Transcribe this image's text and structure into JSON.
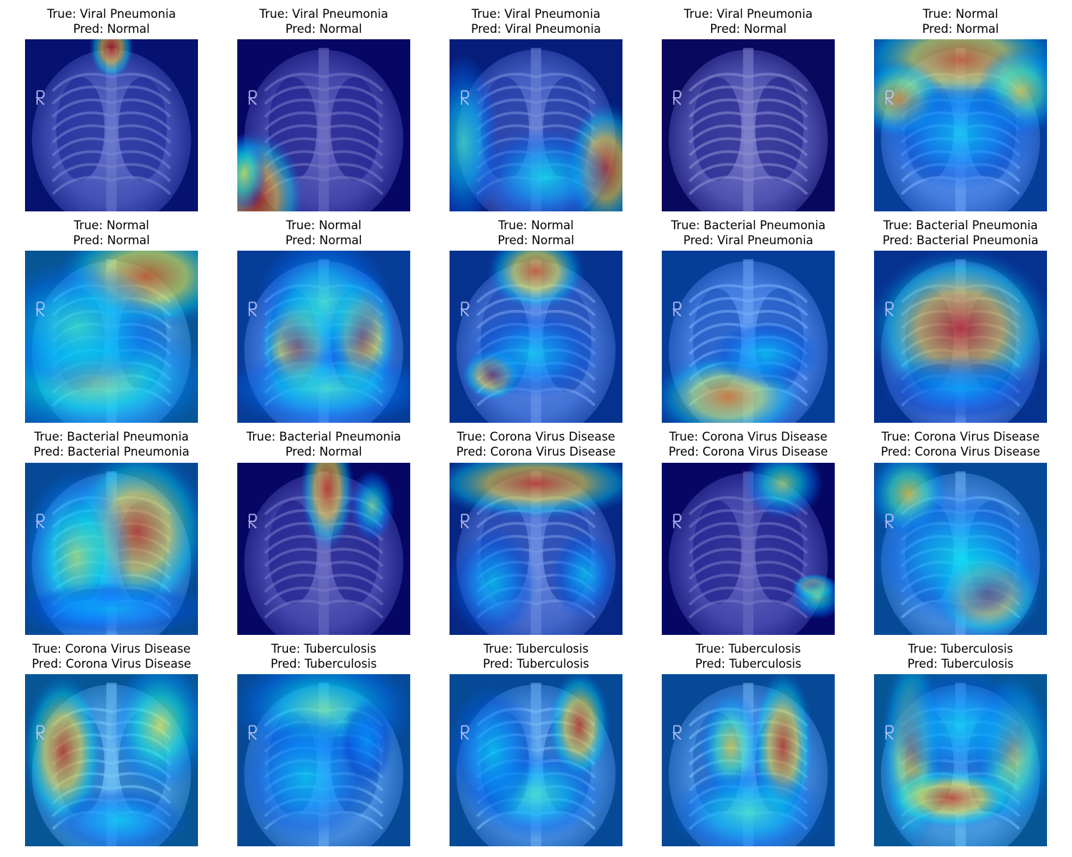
{
  "figure": {
    "panels": [
      {
        "true_label": "True: Viral Pneumonia",
        "pred_label": "Pred: Normal"
      },
      {
        "true_label": "True: Viral Pneumonia",
        "pred_label": "Pred: Normal"
      },
      {
        "true_label": "True: Viral Pneumonia",
        "pred_label": "Pred: Viral Pneumonia"
      },
      {
        "true_label": "True: Viral Pneumonia",
        "pred_label": "Pred: Normal"
      },
      {
        "true_label": "True: Normal",
        "pred_label": "Pred: Normal"
      },
      {
        "true_label": "True: Normal",
        "pred_label": "Pred: Normal"
      },
      {
        "true_label": "True: Normal",
        "pred_label": "Pred: Normal"
      },
      {
        "true_label": "True: Normal",
        "pred_label": "Pred: Normal"
      },
      {
        "true_label": "True: Bacterial Pneumonia",
        "pred_label": "Pred: Viral Pneumonia"
      },
      {
        "true_label": "True: Bacterial Pneumonia",
        "pred_label": "Pred: Bacterial Pneumonia"
      },
      {
        "true_label": "True: Bacterial Pneumonia",
        "pred_label": "Pred: Bacterial Pneumonia"
      },
      {
        "true_label": "True: Bacterial Pneumonia",
        "pred_label": "Pred: Normal"
      },
      {
        "true_label": "True: Corona Virus Disease",
        "pred_label": "Pred: Corona Virus Disease"
      },
      {
        "true_label": "True: Corona Virus Disease",
        "pred_label": "Pred: Corona Virus Disease"
      },
      {
        "true_label": "True: Corona Virus Disease",
        "pred_label": "Pred: Corona Virus Disease"
      },
      {
        "true_label": "True: Corona Virus Disease",
        "pred_label": "Pred: Corona Virus Disease"
      },
      {
        "true_label": "True: Tuberculosis",
        "pred_label": "Pred: Tuberculosis"
      },
      {
        "true_label": "True: Tuberculosis",
        "pred_label": "Pred: Tuberculosis"
      },
      {
        "true_label": "True: Tuberculosis",
        "pred_label": "Pred: Tuberculosis"
      },
      {
        "true_label": "True: Tuberculosis",
        "pred_label": "Pred: Tuberculosis"
      }
    ],
    "colormap": {
      "low": "#00008b",
      "mid_low": "#00c8ff",
      "mid": "#f0f060",
      "high": "#d01818"
    }
  }
}
